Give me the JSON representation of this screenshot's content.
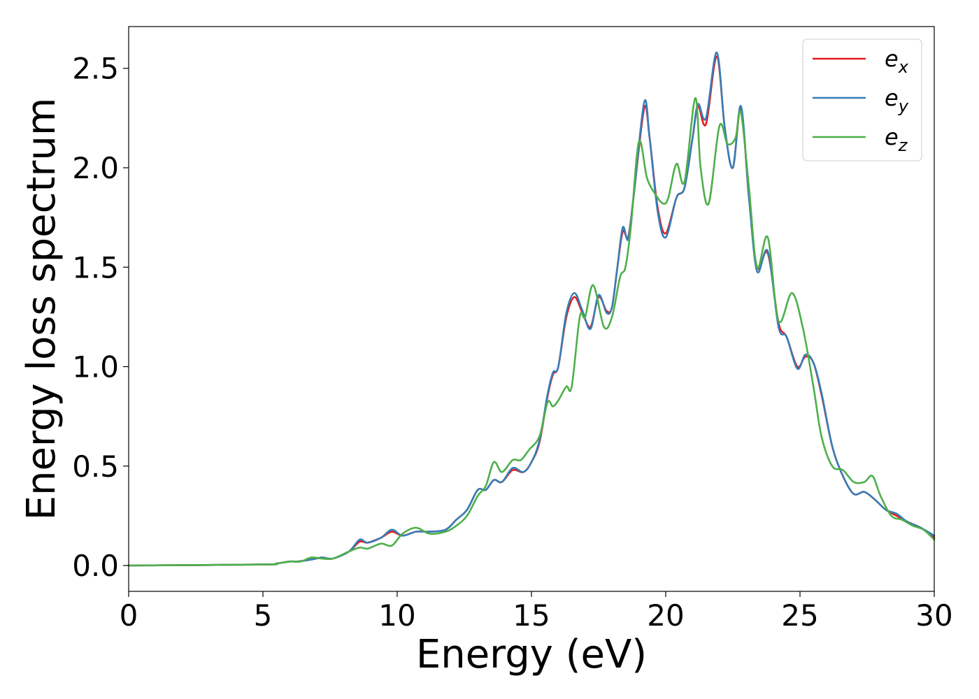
{
  "chart_data": {
    "type": "line",
    "xlabel": "Energy (eV)",
    "ylabel": "Energy loss spectrum",
    "xlim": [
      0,
      30
    ],
    "ylim": [
      -0.13,
      2.71
    ],
    "xticks": [
      0,
      5,
      10,
      15,
      20,
      25,
      30
    ],
    "xtick_labels": [
      "0",
      "5",
      "10",
      "15",
      "20",
      "25",
      "30"
    ],
    "yticks": [
      0.0,
      0.5,
      1.0,
      1.5,
      2.0,
      2.5
    ],
    "ytick_labels": [
      "0.0",
      "0.5",
      "1.0",
      "1.5",
      "2.0",
      "2.5"
    ],
    "grid": false,
    "legend_position": "top-right",
    "series": [
      {
        "name": "e",
        "subscript": "x",
        "color": "#e41a1c",
        "x": [
          0,
          5,
          5.5,
          6,
          6.3,
          6.8,
          7.2,
          7.6,
          8.2,
          8.6,
          8.9,
          9.4,
          9.8,
          10.2,
          10.7,
          11.2,
          11.8,
          12.2,
          12.6,
          13,
          13.3,
          13.6,
          13.9,
          14.3,
          14.7,
          15,
          15.3,
          15.6,
          15.8,
          16,
          16.3,
          16.6,
          16.9,
          17.2,
          17.5,
          17.8,
          18,
          18.2,
          18.4,
          18.6,
          18.8,
          19.2,
          19.4,
          19.7,
          20,
          20.4,
          20.7,
          21,
          21.2,
          21.5,
          21.9,
          22.2,
          22.5,
          22.8,
          23.1,
          23.4,
          23.8,
          24.2,
          24.5,
          24.9,
          25.2,
          25.5,
          25.8,
          26.2,
          26.6,
          27,
          27.4,
          27.8,
          28.2,
          28.6,
          29,
          29.5,
          30
        ],
        "y": [
          0,
          0.005,
          0.01,
          0.02,
          0.02,
          0.03,
          0.04,
          0.035,
          0.07,
          0.12,
          0.115,
          0.14,
          0.17,
          0.15,
          0.17,
          0.17,
          0.18,
          0.23,
          0.28,
          0.38,
          0.38,
          0.43,
          0.42,
          0.48,
          0.47,
          0.52,
          0.62,
          0.85,
          0.96,
          1.0,
          1.25,
          1.35,
          1.27,
          1.2,
          1.35,
          1.28,
          1.3,
          1.5,
          1.68,
          1.65,
          1.85,
          2.3,
          2.15,
          1.8,
          1.67,
          1.85,
          1.9,
          2.15,
          2.31,
          2.22,
          2.56,
          2.2,
          2.0,
          2.3,
          1.85,
          1.5,
          1.57,
          1.22,
          1.15,
          1.0,
          1.05,
          1.02,
          0.86,
          0.6,
          0.45,
          0.36,
          0.37,
          0.33,
          0.28,
          0.25,
          0.22,
          0.19,
          0.14
        ]
      },
      {
        "name": "e",
        "subscript": "y",
        "color": "#377eb8",
        "x": [
          0,
          5,
          5.5,
          6,
          6.3,
          6.8,
          7.2,
          7.6,
          8.2,
          8.6,
          8.9,
          9.4,
          9.8,
          10.2,
          10.7,
          11.2,
          11.8,
          12.2,
          12.6,
          13,
          13.3,
          13.6,
          13.9,
          14.3,
          14.7,
          15,
          15.3,
          15.6,
          15.8,
          16,
          16.3,
          16.6,
          16.9,
          17.2,
          17.5,
          17.8,
          18,
          18.2,
          18.4,
          18.6,
          18.8,
          19.2,
          19.4,
          19.7,
          20,
          20.4,
          20.7,
          21,
          21.2,
          21.5,
          21.9,
          22.2,
          22.5,
          22.8,
          23.1,
          23.4,
          23.8,
          24.2,
          24.5,
          24.9,
          25.2,
          25.5,
          25.8,
          26.2,
          26.6,
          27,
          27.4,
          27.8,
          28.2,
          28.6,
          29,
          29.5,
          30
        ],
        "y": [
          0,
          0.005,
          0.01,
          0.02,
          0.02,
          0.03,
          0.04,
          0.035,
          0.07,
          0.13,
          0.115,
          0.14,
          0.18,
          0.15,
          0.17,
          0.17,
          0.18,
          0.23,
          0.28,
          0.38,
          0.38,
          0.43,
          0.42,
          0.49,
          0.47,
          0.52,
          0.63,
          0.86,
          0.97,
          1.0,
          1.27,
          1.37,
          1.28,
          1.19,
          1.36,
          1.27,
          1.3,
          1.5,
          1.7,
          1.64,
          1.85,
          2.33,
          2.15,
          1.78,
          1.65,
          1.85,
          1.9,
          2.15,
          2.32,
          2.25,
          2.58,
          2.2,
          2.0,
          2.31,
          1.85,
          1.48,
          1.58,
          1.2,
          1.15,
          0.99,
          1.06,
          1.02,
          0.87,
          0.6,
          0.45,
          0.36,
          0.37,
          0.33,
          0.28,
          0.26,
          0.22,
          0.19,
          0.15
        ]
      },
      {
        "name": "e",
        "subscript": "z",
        "color": "#4daf4a",
        "x": [
          0,
          5,
          5.5,
          6,
          6.4,
          6.8,
          7.2,
          7.6,
          8.2,
          8.6,
          8.9,
          9.4,
          9.8,
          10.2,
          10.7,
          11.2,
          11.8,
          12.2,
          12.6,
          13,
          13.3,
          13.6,
          13.9,
          14.3,
          14.6,
          14.9,
          15.3,
          15.6,
          15.8,
          16,
          16.3,
          16.5,
          16.8,
          17.0,
          17.3,
          17.7,
          18,
          18.3,
          18.5,
          18.7,
          19.0,
          19.3,
          19.6,
          19.9,
          20.1,
          20.4,
          20.7,
          21.1,
          21.3,
          21.6,
          22.0,
          22.3,
          22.6,
          22.8,
          23.1,
          23.4,
          23.8,
          24.2,
          24.7,
          25.1,
          25.5,
          25.8,
          26.2,
          26.6,
          27,
          27.4,
          27.7,
          28,
          28.4,
          28.8,
          29.2,
          29.6,
          30
        ],
        "y": [
          0,
          0.005,
          0.01,
          0.02,
          0.02,
          0.04,
          0.035,
          0.035,
          0.07,
          0.09,
          0.085,
          0.11,
          0.1,
          0.16,
          0.19,
          0.16,
          0.17,
          0.2,
          0.25,
          0.35,
          0.4,
          0.52,
          0.47,
          0.53,
          0.53,
          0.58,
          0.65,
          0.82,
          0.8,
          0.83,
          0.9,
          0.9,
          1.25,
          1.25,
          1.41,
          1.2,
          1.25,
          1.45,
          1.5,
          1.7,
          2.13,
          1.95,
          1.87,
          1.82,
          1.85,
          2.02,
          1.93,
          2.35,
          2.0,
          1.82,
          2.21,
          2.12,
          2.15,
          2.28,
          1.9,
          1.5,
          1.65,
          1.23,
          1.37,
          1.2,
          0.9,
          0.65,
          0.5,
          0.48,
          0.42,
          0.42,
          0.45,
          0.35,
          0.25,
          0.23,
          0.2,
          0.18,
          0.13
        ]
      }
    ]
  }
}
